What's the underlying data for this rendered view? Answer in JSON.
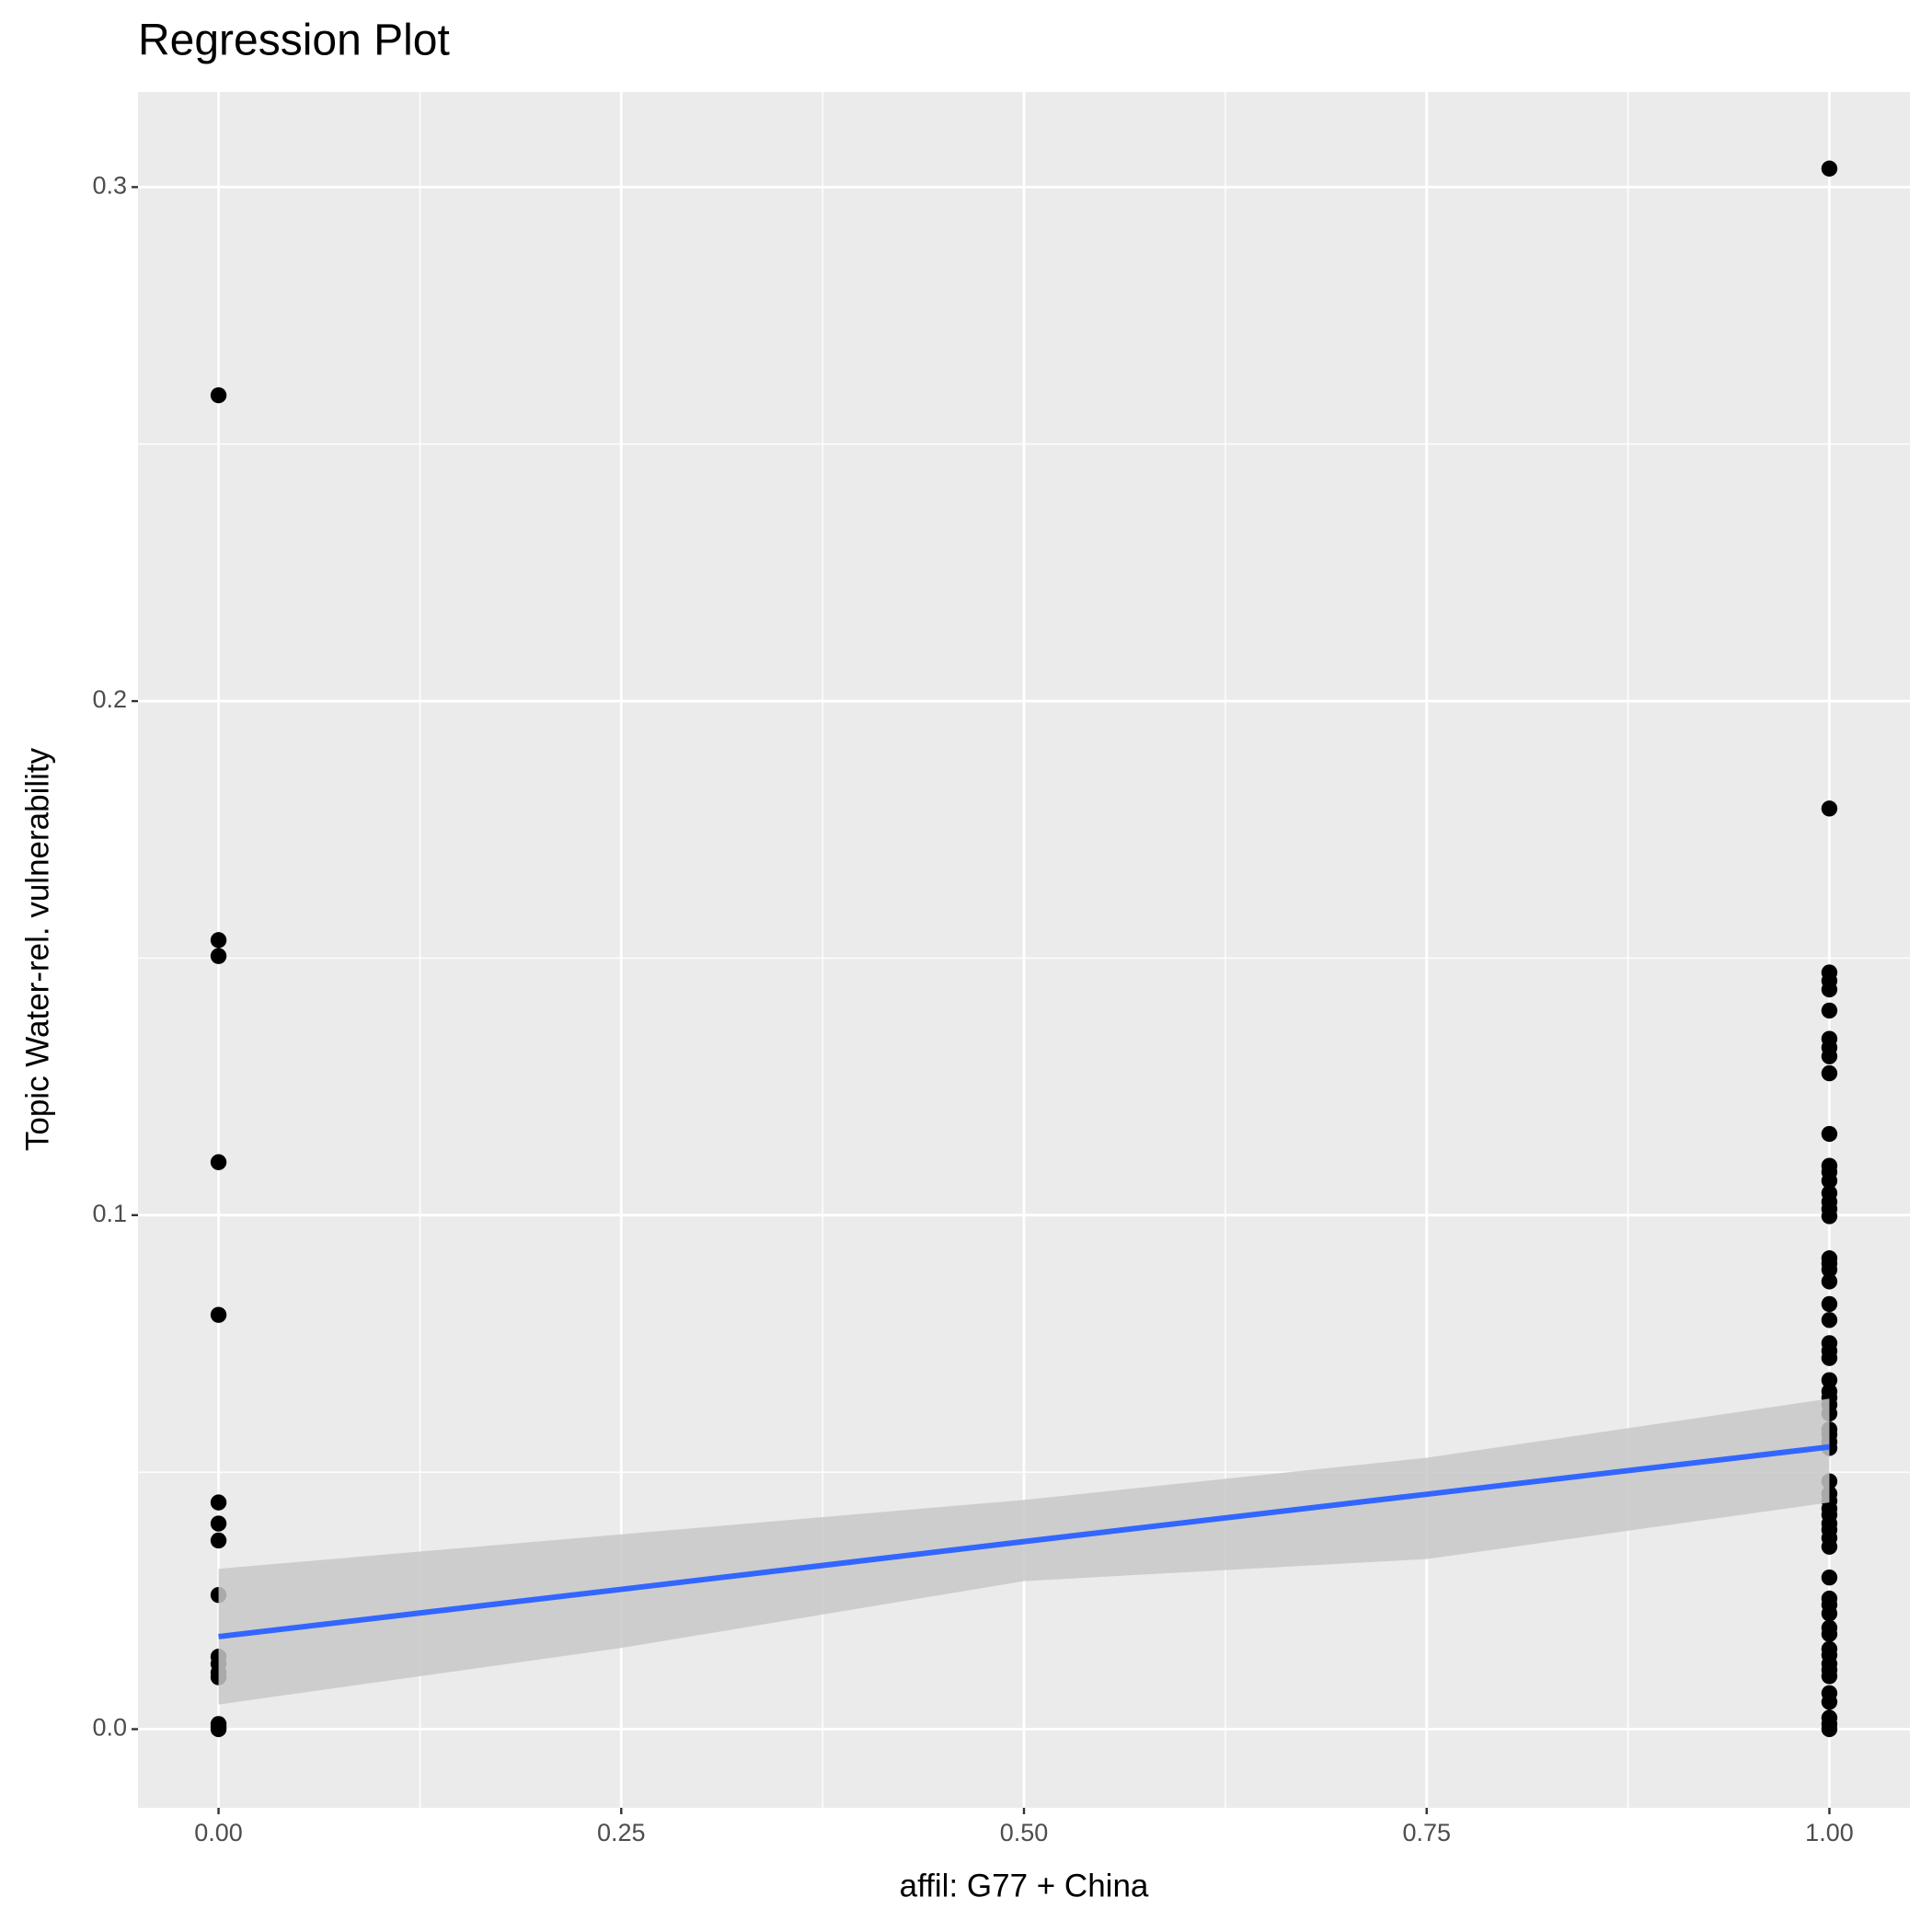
{
  "chart_data": {
    "type": "scatter",
    "title": "Regression Plot",
    "xlabel": "affil: G77 + China",
    "ylabel": "Topic Water-rel. vulnerability",
    "xlim": [
      -0.05,
      1.05
    ],
    "ylim": [
      -0.0153,
      0.3185
    ],
    "xticks": [
      {
        "value": 0,
        "label": "0.00"
      },
      {
        "value": 0.25,
        "label": "0.25"
      },
      {
        "value": 0.5,
        "label": "0.50"
      },
      {
        "value": 0.75,
        "label": "0.75"
      },
      {
        "value": 1,
        "label": "1.00"
      }
    ],
    "yticks": [
      {
        "value": 0,
        "label": "0.0"
      },
      0.1,
      0.2,
      0.3
    ],
    "grid": true,
    "points": {
      "color": "#000000",
      "x": [
        0,
        0,
        0,
        0,
        0,
        0,
        0,
        0,
        0,
        0,
        0,
        0,
        0,
        0,
        0,
        0,
        1,
        1,
        1,
        1,
        1,
        1,
        1,
        1,
        1,
        1,
        1,
        1,
        1,
        1,
        1,
        1,
        1,
        1,
        1,
        1,
        1,
        1,
        1,
        1,
        1,
        1,
        1,
        1,
        1,
        1,
        1,
        1,
        1,
        1,
        1,
        1,
        1,
        1,
        1,
        1,
        1,
        1,
        1,
        1,
        1,
        1,
        1,
        1,
        1,
        1,
        1,
        1,
        1,
        1,
        1,
        1,
        1,
        1,
        1,
        1,
        1
      ],
      "values": [
        0.2595,
        0.1535,
        0.1504,
        0.1103,
        0.0806,
        0.0441,
        0.04,
        0.0367,
        0.0261,
        0.0141,
        0.0127,
        0.011,
        0.0101,
        0.001,
        0.0005,
        0,
        0.3036,
        0.1791,
        0.1472,
        0.1456,
        0.1439,
        0.1398,
        0.1343,
        0.1326,
        0.1309,
        0.1276,
        0.1158,
        0.1096,
        0.1084,
        0.1067,
        0.1043,
        0.1026,
        0.1012,
        0.0998,
        0.0916,
        0.0906,
        0.0894,
        0.0871,
        0.0827,
        0.0796,
        0.0751,
        0.0736,
        0.0722,
        0.0679,
        0.0657,
        0.0645,
        0.0631,
        0.0614,
        0.0583,
        0.0573,
        0.0559,
        0.0547,
        0.0482,
        0.0458,
        0.0444,
        0.0429,
        0.0417,
        0.04,
        0.0388,
        0.0372,
        0.0355,
        0.0295,
        0.0254,
        0.0242,
        0.0225,
        0.0197,
        0.0185,
        0.0156,
        0.0144,
        0.0127,
        0.0115,
        0.0103,
        0.007,
        0.0053,
        0.0022,
        0.001,
        0
      ]
    },
    "fit": {
      "color": "#3366ff",
      "band_color": "#c8c8c8",
      "x": [
        0,
        0.25,
        0.5,
        0.75,
        1
      ],
      "values": [
        0.018,
        0.0272,
        0.0365,
        0.0457,
        0.0549
      ],
      "lower": [
        0.0048,
        0.0158,
        0.0288,
        0.0331,
        0.0441
      ],
      "upper": [
        0.0312,
        0.0379,
        0.0446,
        0.0528,
        0.0643
      ]
    }
  }
}
